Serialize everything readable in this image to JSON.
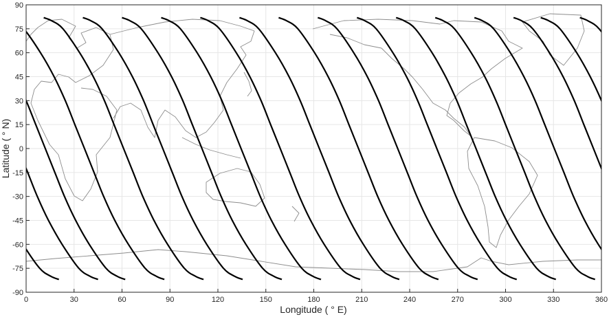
{
  "chart_data": {
    "type": "line",
    "title": "",
    "xlabel": "Longitude ( ° E)",
    "ylabel": "Latitude ( ° N)",
    "xlim": [
      0,
      360
    ],
    "ylim": [
      -90,
      90
    ],
    "xticks": [
      0,
      30,
      60,
      90,
      120,
      150,
      180,
      210,
      240,
      270,
      300,
      330,
      360
    ],
    "yticks": [
      -90,
      -75,
      -60,
      -45,
      -30,
      -15,
      0,
      15,
      30,
      45,
      60,
      75,
      90
    ],
    "grid": true,
    "legend": "none",
    "background_map": "world coastlines",
    "colors": {
      "track": "#000000",
      "coastline": "#8c8c8c",
      "grid": "#e6e6e6",
      "axis": "#262626"
    },
    "ground_track": {
      "max_latitude": 82,
      "equator_crossings_lon": [
        12,
        36.5,
        61,
        85.5,
        110,
        134.5,
        159,
        183.5,
        208,
        232.5,
        257,
        281.5,
        306,
        330.5,
        355
      ],
      "lat_points": [
        82,
        80,
        75,
        60,
        45,
        30,
        15,
        0,
        -15,
        -30,
        -45,
        -60,
        -75,
        -80,
        -82
      ],
      "lon_offsets": [
        -50,
        -45,
        -38,
        -27.5,
        -19,
        -12,
        -6,
        0,
        6,
        12,
        19,
        27.5,
        38,
        45,
        50
      ]
    }
  }
}
